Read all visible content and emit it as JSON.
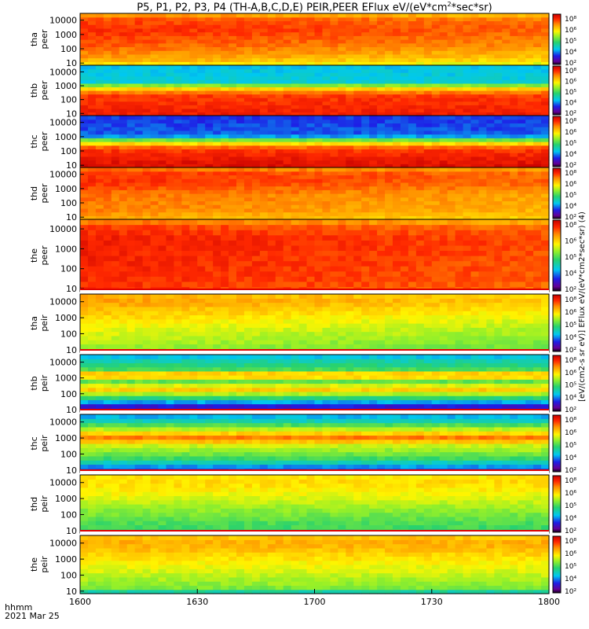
{
  "title": "P5, P1, P2, P3, P4 (TH-A,B,C,D,E) PEIR,PEER EFlux eV/(eV*cm",
  "title_sup": "2",
  "title_tail": "*sec*sr)",
  "time_axis": {
    "label": "hhmm",
    "date": "2021 Mar 25"
  },
  "colorbar_label": "[eV/(cm2-s sr eV)] EFlux eV/(eV*cm2*sec*sr) (4)",
  "chart_data": {
    "type": "heatmap",
    "x": {
      "label": "hhmm",
      "ticks": [
        "1600",
        "1630",
        "1700",
        "1730",
        "1800"
      ],
      "range": [
        "16:00",
        "18:00"
      ]
    },
    "y_scale": "log",
    "y_ticks": [
      "10",
      "100",
      "1000",
      "10000"
    ],
    "colorbar_ticks": [
      "10²",
      "10⁴",
      "10⁵",
      "10⁶",
      "10⁸"
    ],
    "panels": [
      {
        "name": "tha peer",
        "label1": "tha",
        "label2": "peer",
        "ylim": [
          7,
          30000
        ]
      },
      {
        "name": "thb peer",
        "label1": "thb",
        "label2": "peer",
        "ylim": [
          7,
          30000
        ]
      },
      {
        "name": "thc peer",
        "label1": "thc",
        "label2": "peer",
        "ylim": [
          7,
          30000
        ]
      },
      {
        "name": "thd peer",
        "label1": "thd",
        "label2": "peer",
        "ylim": [
          7,
          30000
        ]
      },
      {
        "name": "the peer",
        "label1": "the",
        "label2": "peer",
        "ylim": [
          7,
          30000
        ]
      },
      {
        "name": "tha peir",
        "label1": "tha",
        "label2": "peir",
        "ylim": [
          7,
          30000
        ]
      },
      {
        "name": "thb peir",
        "label1": "thb",
        "label2": "peir",
        "ylim": [
          7,
          30000
        ]
      },
      {
        "name": "thc peir",
        "label1": "thc",
        "label2": "peir",
        "ylim": [
          7,
          30000
        ]
      },
      {
        "name": "thd peir",
        "label1": "thd",
        "label2": "peir",
        "ylim": [
          7,
          30000
        ]
      },
      {
        "name": "the peir",
        "label1": "the",
        "label2": "peir",
        "ylim": [
          7,
          30000
        ]
      }
    ]
  }
}
